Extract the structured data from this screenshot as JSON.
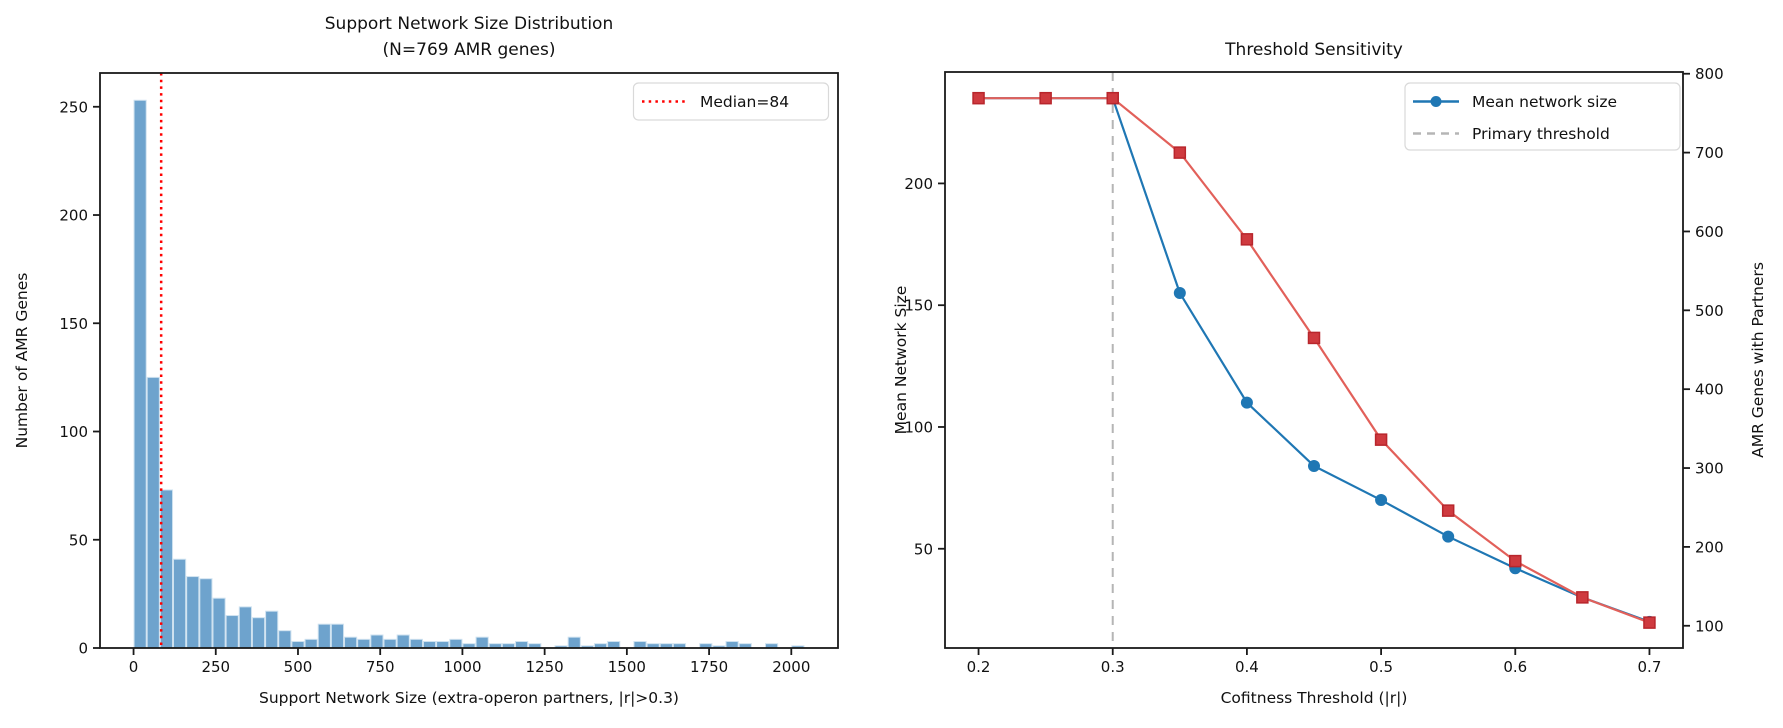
{
  "figure": {
    "background": "#ffffff",
    "spine_color": "#1a1a1a"
  },
  "chart_data": [
    {
      "type": "bar",
      "role": "histogram",
      "title_line1": "Support Network Size Distribution",
      "title_line2": "(N=769 AMR genes)",
      "xlabel": "Support Network Size (extra-operon partners, |r|>0.3)",
      "ylabel": "Number of AMR Genes",
      "bin_start": 0,
      "bin_width": 40,
      "counts": [
        253,
        125,
        73,
        41,
        33,
        32,
        23,
        15,
        19,
        14,
        17,
        8,
        3,
        4,
        11,
        11,
        5,
        4,
        6,
        4,
        6,
        4,
        3,
        3,
        4,
        2,
        5,
        2,
        2,
        3,
        2,
        0,
        1,
        5,
        1,
        2,
        3,
        0,
        3,
        2,
        2,
        2,
        0,
        2,
        1,
        3,
        2,
        0,
        2,
        0,
        1
      ],
      "total_genes": 769,
      "xticks": [
        0,
        250,
        500,
        750,
        1000,
        1250,
        1500,
        1750,
        2000
      ],
      "yticks": [
        0,
        50,
        100,
        150,
        200,
        250
      ],
      "xlim": [
        -102,
        2142
      ],
      "ylim": [
        0,
        265.6
      ],
      "bar_color": "#6ea3cd",
      "bar_edge_color": "#cfe2f0",
      "median": {
        "value": 84,
        "legend_label": "Median=84",
        "color": "#ff0000",
        "style": "dotted"
      },
      "legend_position": "upper right"
    },
    {
      "type": "line",
      "role": "threshold-sensitivity",
      "title": "Threshold Sensitivity",
      "xlabel": "Cofitness Threshold (|r|)",
      "ylabel_left": "Mean Network Size",
      "ylabel_right": "AMR Genes with Partners",
      "x": [
        0.2,
        0.25,
        0.3,
        0.35,
        0.4,
        0.45,
        0.5,
        0.55,
        0.6,
        0.65,
        0.7
      ],
      "series": [
        {
          "name": "Mean network size",
          "axis": "left",
          "marker": "circle",
          "color": "#1f77b4",
          "marker_color": "#1f77b4",
          "values": [
            235,
            235,
            235,
            155,
            110,
            84,
            70,
            55,
            42,
            30,
            20
          ]
        },
        {
          "name": "AMR Genes with Partners",
          "axis": "right",
          "marker": "square",
          "color": "#e2605a",
          "marker_color": "#cf3a3f",
          "marker_edge": "#b8262c",
          "values": [
            769,
            769,
            769,
            700,
            590,
            465,
            336,
            246,
            182,
            136,
            104
          ]
        }
      ],
      "threshold": {
        "x": 0.3,
        "legend_label": "Primary threshold",
        "color": "#b5b5b5",
        "style": "dashed"
      },
      "xticks": [
        0.2,
        0.3,
        0.4,
        0.5,
        0.6,
        0.7
      ],
      "yticks_left": [
        50,
        100,
        150,
        200
      ],
      "yticks_right": [
        100,
        200,
        300,
        400,
        500,
        600,
        700,
        800
      ],
      "xlim": [
        0.175,
        0.725
      ],
      "ylim_left": [
        9.25,
        245.75
      ],
      "ylim_right": [
        71.8,
        802.2
      ],
      "axis_color_left": "#1f77b4",
      "axis_color_right": "#d62728",
      "legend": [
        "Mean network size",
        "Primary threshold"
      ],
      "legend_position": "upper right",
      "grid": "off"
    }
  ]
}
